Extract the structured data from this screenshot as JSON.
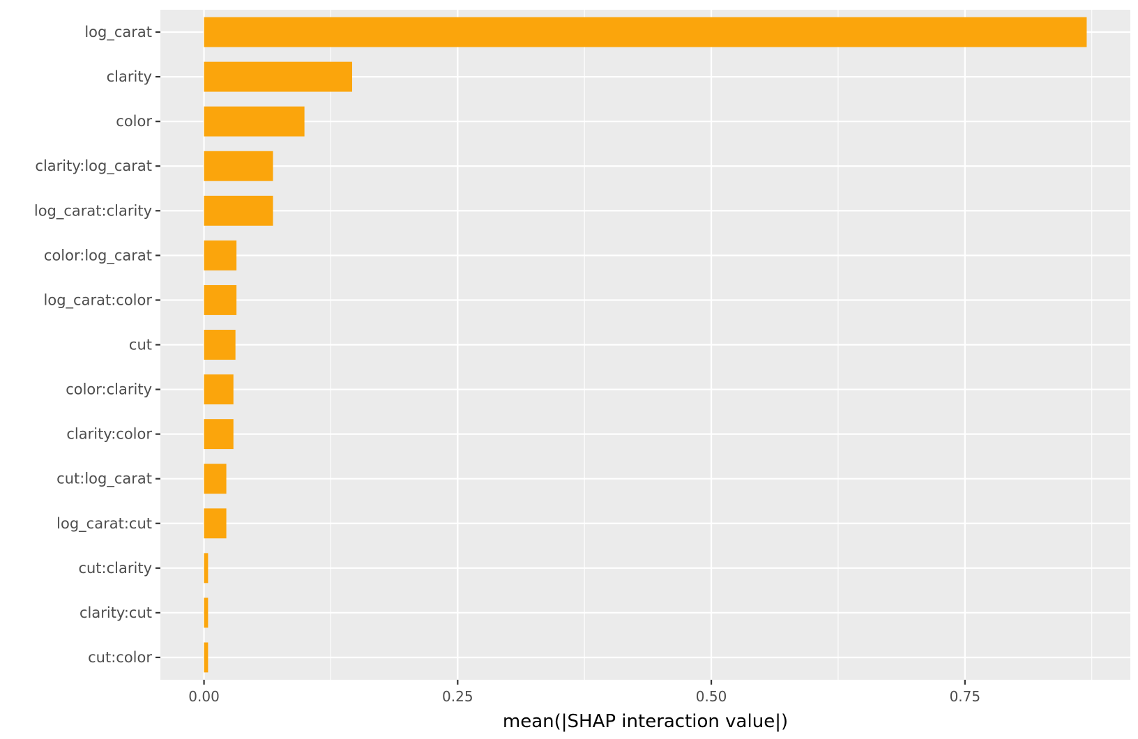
{
  "chart_data": {
    "type": "bar",
    "orientation": "horizontal",
    "categories": [
      "log_carat",
      "clarity",
      "color",
      "clarity:log_carat",
      "log_carat:clarity",
      "color:log_carat",
      "log_carat:color",
      "cut",
      "color:clarity",
      "clarity:color",
      "cut:log_carat",
      "log_carat:cut",
      "cut:clarity",
      "clarity:cut",
      "cut:color"
    ],
    "values": [
      0.87,
      0.146,
      0.099,
      0.068,
      0.068,
      0.032,
      0.032,
      0.031,
      0.029,
      0.029,
      0.022,
      0.022,
      0.004,
      0.004,
      0.004
    ],
    "title": "",
    "xlabel": "mean(|SHAP interaction value|)",
    "ylabel": "",
    "xlim": [
      -0.043,
      0.913
    ],
    "x_ticks": [
      0.0,
      0.25,
      0.5,
      0.75
    ],
    "x_tick_labels": [
      "0.00",
      "0.25",
      "0.50",
      "0.75"
    ],
    "grid": true,
    "legend": "none",
    "colors": {
      "bar": "#FBA50C",
      "panel_background": "#EBEBEB",
      "grid_line": "#FFFFFF",
      "tick_text": "#4D4D4D",
      "tick_mark": "#333333",
      "axis_title": "#000000"
    }
  }
}
